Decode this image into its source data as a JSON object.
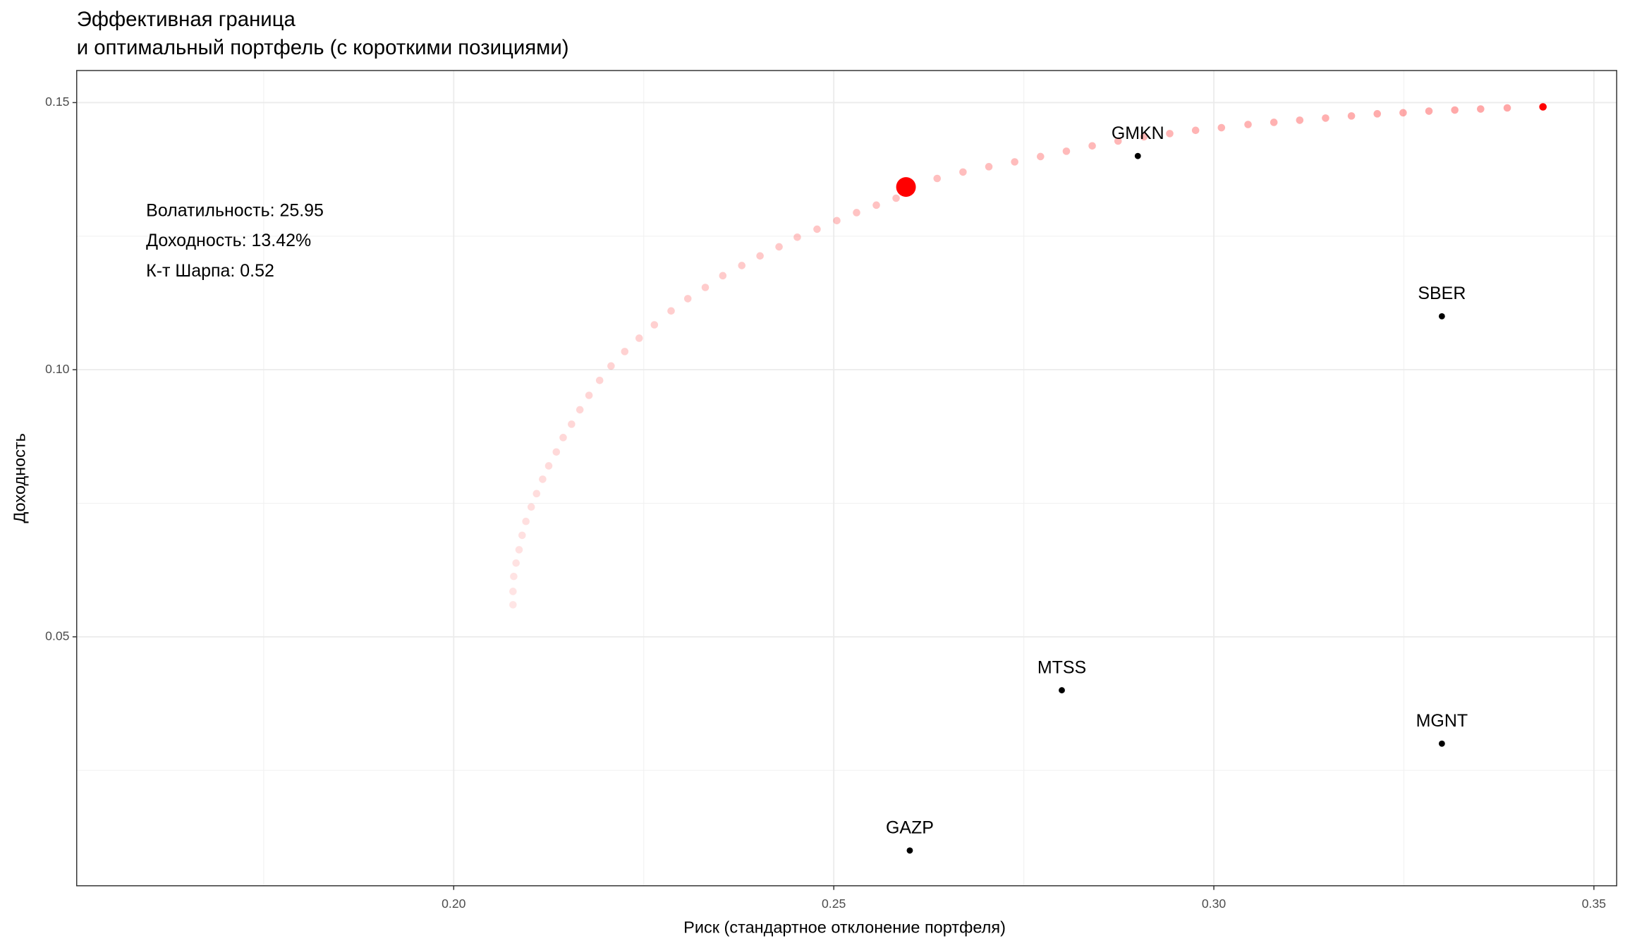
{
  "chart_data": {
    "type": "scatter",
    "title_lines": [
      "Эффективная граница",
      "и оптимальный портфель (с короткими позициями)"
    ],
    "xlabel": "Риск (стандартное отклонение портфеля)",
    "ylabel": "Доходность",
    "xlim": [
      0.1504,
      0.353
    ],
    "ylim": [
      0.0034,
      0.156
    ],
    "xticks": [
      {
        "value": 0.2,
        "label": "0.20"
      },
      0.25,
      {
        "value": 0.3,
        "label": "0.30"
      },
      0.35
    ],
    "yticks": [
      0.05,
      {
        "value": 0.1,
        "label": "0.10"
      },
      0.15
    ],
    "x_minor_grid": [
      0.175,
      0.225,
      0.275,
      0.325
    ],
    "y_minor_grid": [
      0.025,
      0.075,
      0.125
    ],
    "grid": true,
    "frontier": {
      "color": "#ff0000",
      "x": [
        0.2078,
        0.2078,
        0.2079,
        0.2082,
        0.2086,
        0.209,
        0.2095,
        0.2102,
        0.2109,
        0.2117,
        0.2125,
        0.2135,
        0.2144,
        0.2155,
        0.2166,
        0.2178,
        0.2192,
        0.2207,
        0.2225,
        0.2244,
        0.2264,
        0.2286,
        0.2308,
        0.2331,
        0.2354,
        0.2379,
        0.2403,
        0.2428,
        0.2452,
        0.2478,
        0.2504,
        0.253,
        0.2556,
        0.2582,
        0.2602,
        0.2636,
        0.267,
        0.2704,
        0.2738,
        0.2772,
        0.2806,
        0.284,
        0.2874,
        0.2908,
        0.2942,
        0.2976,
        0.301,
        0.3045,
        0.3079,
        0.3113,
        0.3147,
        0.3181,
        0.3215,
        0.3249,
        0.3283,
        0.3317,
        0.3351,
        0.3386,
        0.3433
      ],
      "y": [
        0.056,
        0.0585,
        0.0613,
        0.0638,
        0.0663,
        0.069,
        0.0716,
        0.0743,
        0.0768,
        0.0795,
        0.082,
        0.0846,
        0.0873,
        0.0898,
        0.0925,
        0.0952,
        0.098,
        0.1007,
        0.1034,
        0.1059,
        0.1084,
        0.111,
        0.1133,
        0.1154,
        0.1176,
        0.1195,
        0.1213,
        0.123,
        0.1248,
        0.1263,
        0.1279,
        0.1294,
        0.1308,
        0.1321,
        0.1347,
        0.1358,
        0.137,
        0.138,
        0.1389,
        0.1399,
        0.1409,
        0.1419,
        0.1428,
        0.1436,
        0.1442,
        0.1448,
        0.1453,
        0.1459,
        0.1463,
        0.1467,
        0.1471,
        0.1475,
        0.1479,
        0.1481,
        0.1484,
        0.1486,
        0.1488,
        0.149,
        0.1492
      ]
    },
    "optimal": {
      "x": 0.2595,
      "y": 0.1342,
      "color": "#ff0000"
    },
    "assets": {
      "color": "#000000",
      "labels": [
        "GMKN",
        "SBER",
        "MTSS",
        "MGNT",
        "GAZP"
      ],
      "x": [
        0.29,
        0.33,
        0.28,
        0.33,
        0.26
      ],
      "y": [
        0.14,
        0.11,
        0.04,
        0.03,
        0.01
      ]
    },
    "annotations": [
      "Волатильность: 25.95",
      "Доходность: 13.42%",
      "К-т Шарпа: 0.52"
    ]
  }
}
